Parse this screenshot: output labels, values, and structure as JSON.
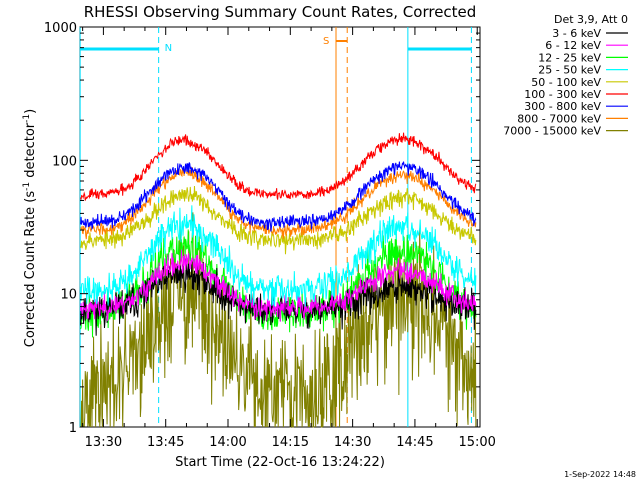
{
  "chart_data": {
    "type": "line",
    "title": "RHESSI Observing Summary Count Rates, Corrected",
    "xlabel": "Start Time (22-Oct-16 13:24:22)",
    "ylabel_main": "Corrected Count Rate (s",
    "ylabel_sup1": "-1",
    "ylabel_mid": " detector",
    "ylabel_sup2": "-1",
    "ylabel_end": ")",
    "yscale": "log",
    "ylim": [
      1,
      1000
    ],
    "xlim": [
      "13:24:22",
      "15:00:40"
    ],
    "x_tick_labels": [
      "13:30",
      "13:45",
      "14:00",
      "14:15",
      "14:30",
      "14:45",
      "15:00"
    ],
    "x_ticks_minutes": [
      810,
      825,
      840,
      855,
      870,
      885,
      900
    ],
    "y_tick_labels": [
      "1",
      "10",
      "100",
      "1000"
    ],
    "y_ticks": [
      1,
      10,
      100,
      1000
    ],
    "legend_title": "Det 3,9, Att 0",
    "legend_position": "right",
    "series": [
      {
        "name": "3 - 6 keV",
        "color": "#000000",
        "base": 7.5,
        "peak1": 14,
        "peak2": 11,
        "noise": 0.09,
        "seed": 11
      },
      {
        "name": "6 - 12 keV",
        "color": "#ff00ff",
        "base": 7.8,
        "peak1": 17,
        "peak2": 15,
        "noise": 0.06,
        "seed": 23
      },
      {
        "name": "12 - 25 keV",
        "color": "#00ff00",
        "base": 7.0,
        "peak1": 22,
        "peak2": 21,
        "noise": 0.1,
        "seed": 37
      },
      {
        "name": "25 - 50 keV",
        "color": "#00ffff",
        "base": 10.5,
        "peak1": 33,
        "peak2": 31,
        "noise": 0.08,
        "seed": 41
      },
      {
        "name": "50 - 100 keV",
        "color": "#c8c800",
        "base": 25,
        "peak1": 55,
        "peak2": 53,
        "noise": 0.05,
        "seed": 53
      },
      {
        "name": "100 - 300 keV",
        "color": "#ff0000",
        "base": 55,
        "peak1": 140,
        "peak2": 145,
        "noise": 0.03,
        "seed": 67
      },
      {
        "name": "300 - 800 keV",
        "color": "#0000ff",
        "base": 34,
        "peak1": 88,
        "peak2": 90,
        "noise": 0.035,
        "seed": 71
      },
      {
        "name": "800 - 7000 keV",
        "color": "#ff8000",
        "base": 30,
        "peak1": 80,
        "peak2": 78,
        "noise": 0.035,
        "seed": 83
      },
      {
        "name": "7000 - 15000 keV",
        "color": "#808000",
        "base": 1.6,
        "peak1": 9.5,
        "peak2": 10,
        "noise": 0.35,
        "seed": 97
      }
    ],
    "annotations": {
      "night_label": "N",
      "saa_label": "S",
      "night_color": "#00e0ff",
      "saa_color": "#ff8000",
      "night_lines_minutes": [
        804.4,
        823.3,
        883.3,
        898.6
      ],
      "saa_lines_minutes": [
        866.0,
        868.7
      ]
    },
    "footer_date": "1-Sep-2022 14:48"
  }
}
